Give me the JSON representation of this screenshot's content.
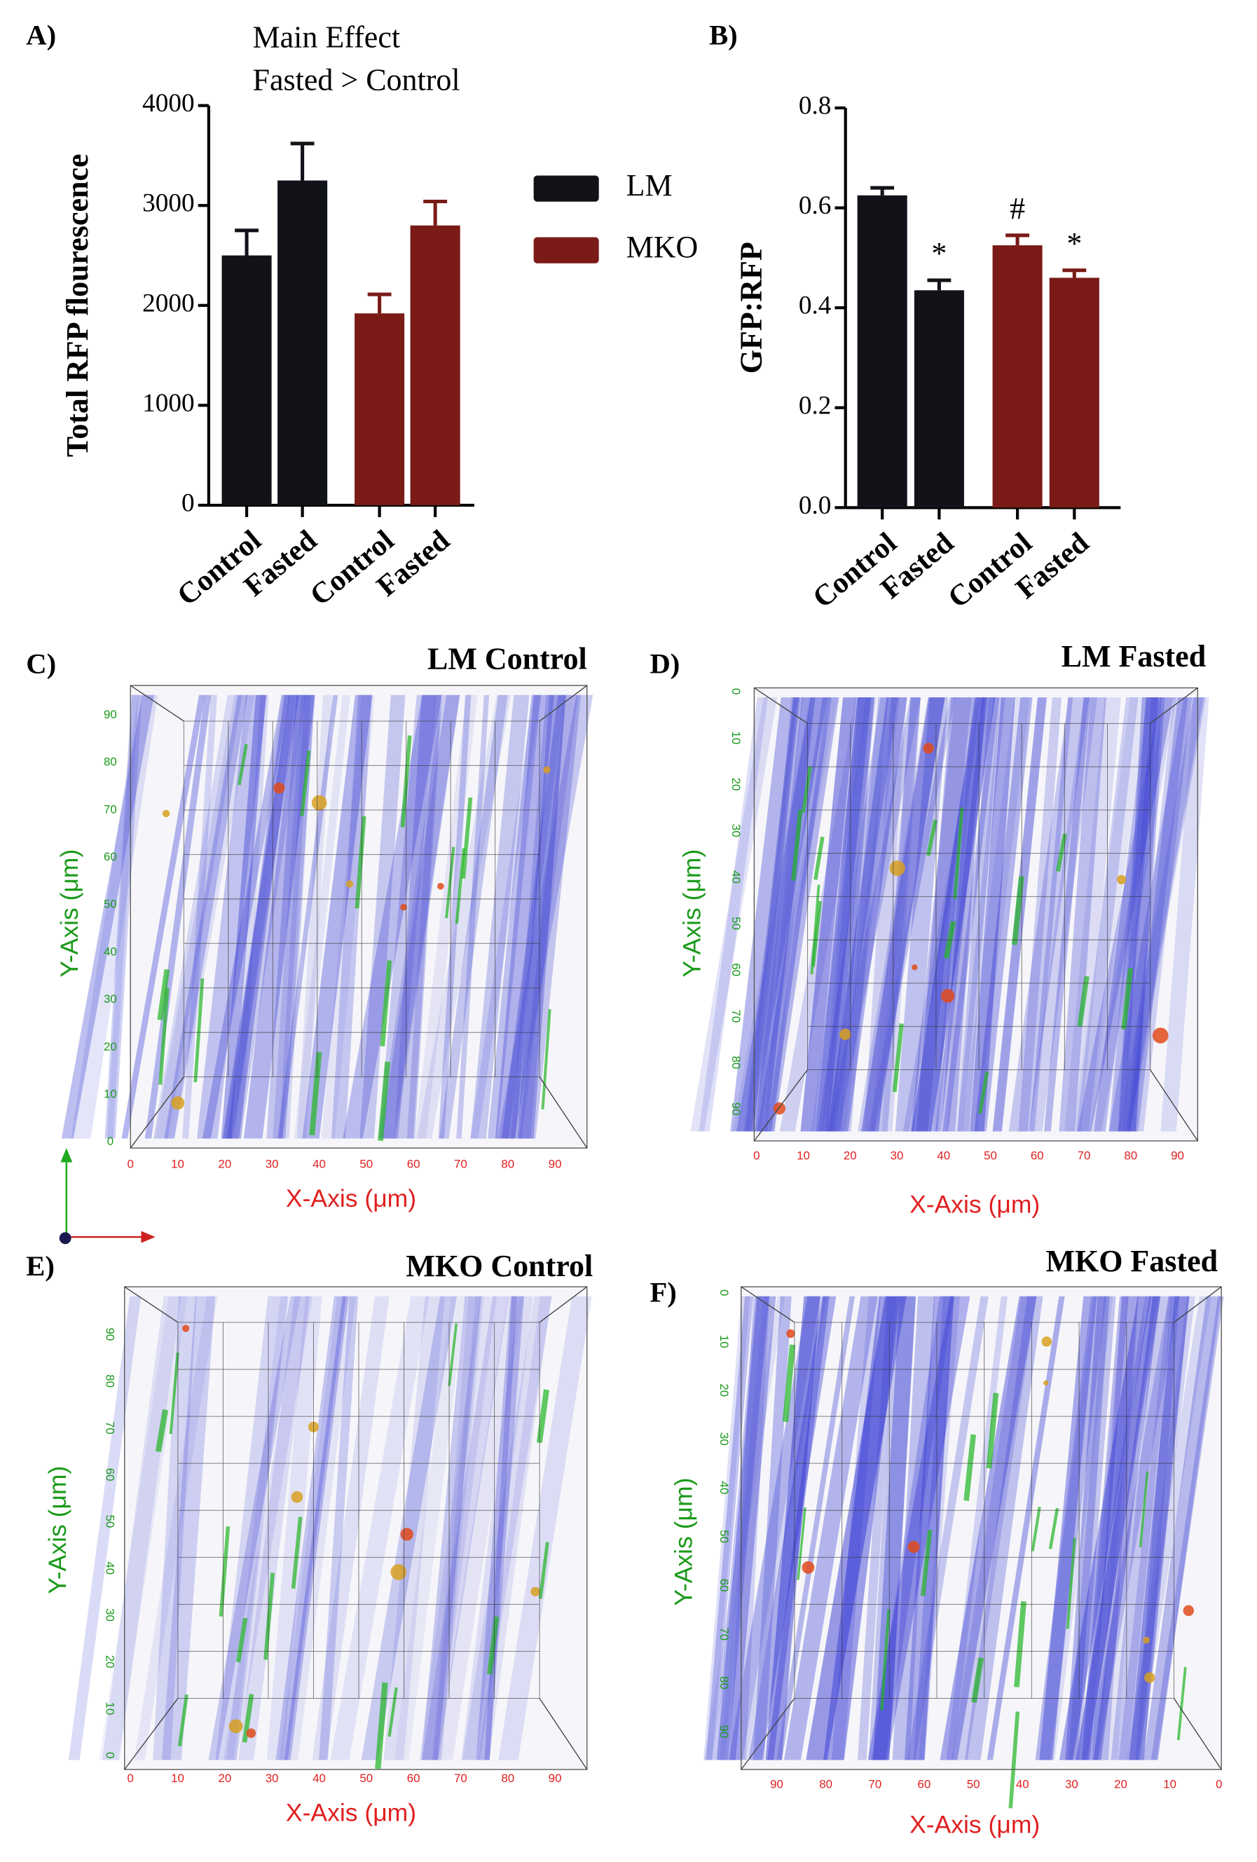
{
  "chart_data": [
    {
      "type": "bar",
      "label": "A)",
      "annotation": [
        "Main Effect",
        "Fasted > Control"
      ],
      "ylabel": "Total  RFP flourescence",
      "categories": [
        "Control",
        "Fasted",
        "Control",
        "Fasted"
      ],
      "series": [
        {
          "name": "LM",
          "color": "#111318",
          "values": [
            2500,
            3250,
            null,
            null
          ],
          "errors": [
            250,
            370,
            null,
            null
          ]
        },
        {
          "name": "MKO",
          "color": "#7a1b17",
          "values": [
            null,
            null,
            1920,
            2800
          ],
          "errors": [
            null,
            null,
            190,
            240
          ]
        }
      ],
      "ylim": [
        0,
        4000
      ],
      "yticks": [
        0,
        1000,
        2000,
        3000,
        4000
      ]
    },
    {
      "type": "bar",
      "label": "B)",
      "ylabel": "GFP:RFP",
      "categories": [
        "Control",
        "Fasted",
        "Control",
        "Fasted"
      ],
      "series": [
        {
          "color": "#111318",
          "values": [
            0.625,
            0.435,
            null,
            null
          ],
          "errors": [
            0.015,
            0.02,
            null,
            null
          ],
          "significance": [
            null,
            "*",
            null,
            null
          ]
        },
        {
          "color": "#7a1b17",
          "values": [
            null,
            null,
            0.525,
            0.46
          ],
          "errors": [
            null,
            null,
            0.02,
            0.015
          ],
          "significance": [
            null,
            null,
            "#",
            "*"
          ]
        }
      ],
      "ylim": [
        0,
        0.8
      ],
      "yticks": [
        {
          "value": 0,
          "label": "0.0"
        },
        0.2,
        0.4,
        0.6,
        0.8
      ]
    }
  ],
  "panels": [
    {
      "label": "C)",
      "title": "LM Control",
      "xlabel": "X-Axis (μm)",
      "ylabel": "Y-Axis (μm)",
      "xticks": [
        0,
        10,
        20,
        30,
        40,
        50,
        60,
        70,
        80,
        90
      ],
      "yticks": [
        0,
        10,
        20,
        30,
        40,
        50,
        60,
        70,
        80,
        90
      ]
    },
    {
      "label": "D)",
      "title": "LM Fasted",
      "xlabel": "X-Axis (μm)",
      "ylabel": "Y-Axis (μm)",
      "xticks": [
        0,
        10,
        20,
        30,
        40,
        50,
        60,
        70,
        80,
        90
      ],
      "yticks": [
        0,
        10,
        20,
        30,
        40,
        50,
        60,
        70,
        80,
        90
      ]
    },
    {
      "label": "E)",
      "title": "MKO Control",
      "xlabel": "X-Axis (μm)",
      "ylabel": "Y-Axis (μm)",
      "xticks": [
        0,
        10,
        20,
        30,
        40,
        50,
        60,
        70,
        80,
        90
      ],
      "yticks": [
        0,
        10,
        20,
        30,
        40,
        50,
        60,
        70,
        80,
        90
      ]
    },
    {
      "label": "F)",
      "title": "MKO Fasted",
      "xlabel": "X-Axis (μm)",
      "ylabel": "Y-Axis (μm)",
      "xticks": [
        90,
        80,
        70,
        60,
        50,
        40,
        30,
        20,
        10,
        0
      ],
      "yticks": [
        0,
        10,
        20,
        30,
        40,
        50,
        60,
        70,
        80,
        90
      ]
    }
  ]
}
